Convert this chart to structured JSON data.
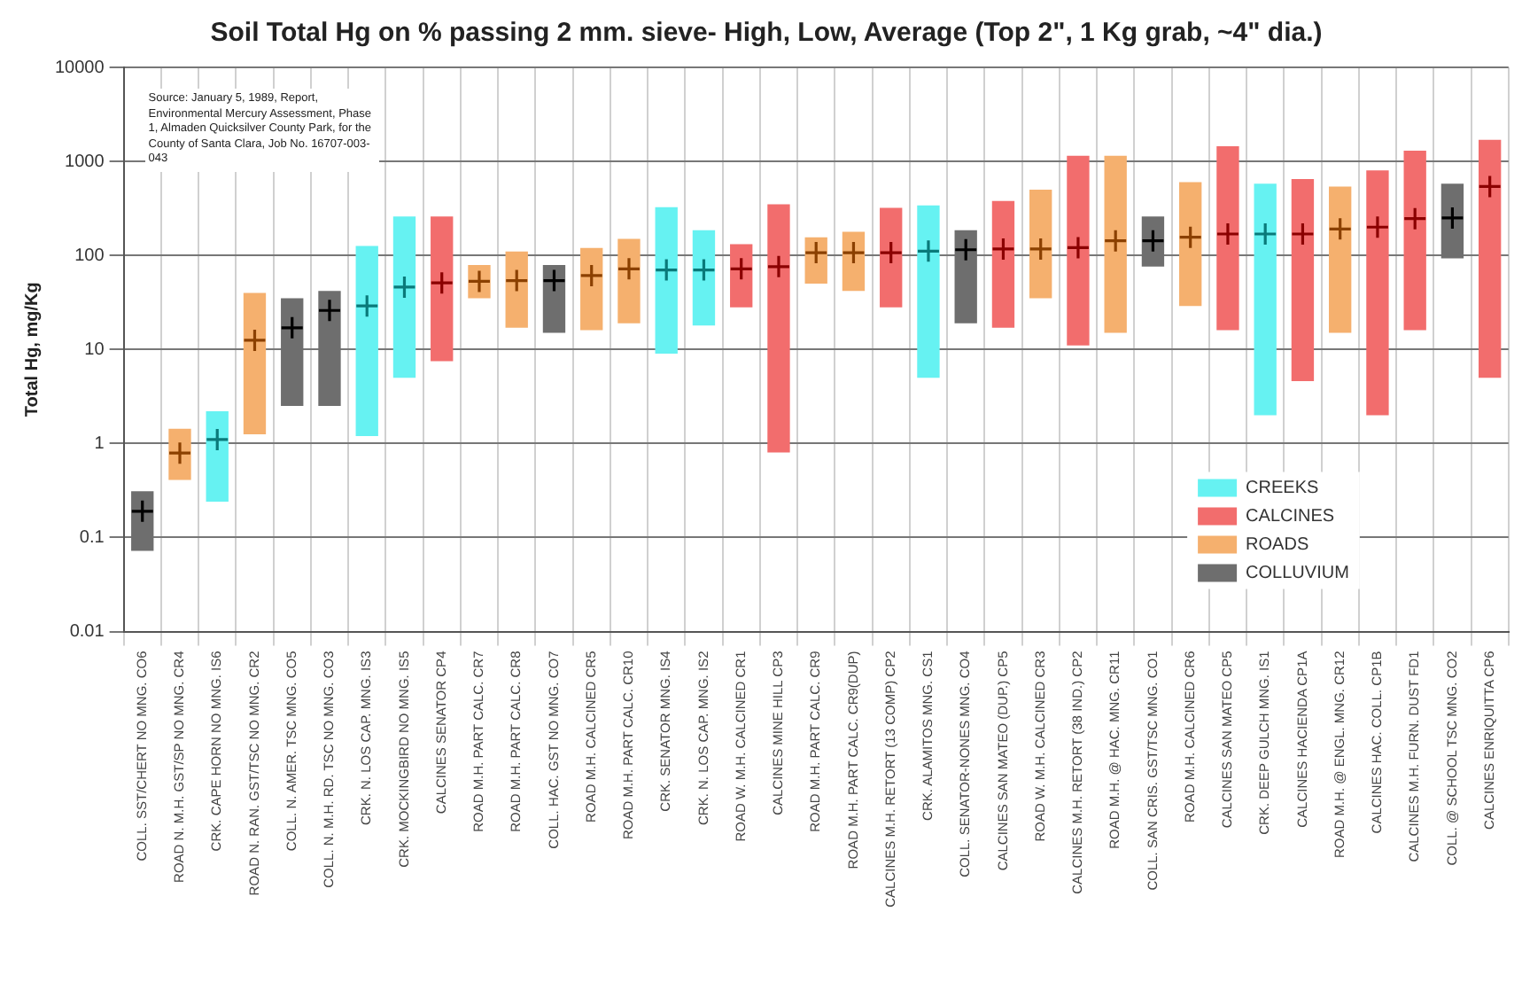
{
  "chart_data": {
    "type": "bar",
    "title": "Soil Total Hg on % passing 2 mm. sieve- High, Low, Average (Top 2\", 1 Kg grab, ~4\" dia.)",
    "ylabel": "Total Hg, mg/Kg",
    "categories": [
      "COLL. SST/CHERT NO MNG. CO6",
      "ROAD N. M.H. GST/SP NO MNG. CR4",
      "CRK. CAPE HORN NO MNG. IS6",
      "ROAD N. RAN. GST/TSC NO MNG. CR2",
      "COLL. N. AMER. TSC MNG. CO5",
      "COLL. N. M.H. RD. TSC NO MNG. CO3",
      "CRK. N. LOS CAP. MNG. IS3",
      "CRK. MOCKINGBIRD NO MNG. IS5",
      "CALCINES SENATOR CP4",
      "ROAD M.H. PART CALC. CR7",
      "ROAD M.H. PART CALC. CR8",
      "COLL. HAC. GST NO MNG. CO7",
      "ROAD M.H. CALCINED CR5",
      "ROAD M.H. PART CALC. CR10",
      "CRK. SENATOR MNG. IS4",
      "CRK. N. LOS CAP. MNG. IS2",
      "ROAD W. M.H. CALCINED CR1",
      "CALCINES MINE HILL CP3",
      "ROAD M.H. PART CALC. CR9",
      "ROAD M.H. PART CALC. CR9(DUP)",
      "CALCINES M.H. RETORT (13 COMP) CP2",
      "CRK. ALAMITOS MNG. CS1",
      "COLL. SENATOR-NONES MNG. CO4",
      "CALCINES SAN MATEO (DUP.) CP5",
      "ROAD W. M.H. CALCINED CR3",
      "CALCINES M.H. RETORT (38 IND.) CP2",
      "ROAD M.H. @ HAC. MNG. CR11",
      "COLL. SAN CRIS. GST/TSC MNG. CO1",
      "ROAD M.H. CALCINED CR6",
      "CALCINES SAN MATEO CP5",
      "CRK. DEEP GULCH MNG. IS1",
      "CALCINES HACIENDA CP1A",
      "ROAD M.H. @ ENGL. MNG. CR12",
      "CALCINES HAC. COLL. CP1B",
      "CALCINES M.H. FURN. DUST FD1",
      "COLL. @ SCHOOL TSC MNG. CO2",
      "CALCINES ENRIQUITTA CP6"
    ],
    "log": "y",
    "ylim": [
      0.01,
      10000
    ],
    "yticks": [
      0.01,
      0.1,
      1,
      10,
      100,
      1000,
      10000
    ],
    "grid": true,
    "legend": "bottom right",
    "annotations": [
      "Source: January 5, 1989, Report, Environmental Mercury Assessment, Phase 1, Almaden Quicksilver County Park, for the County of Santa Clara, Job No. 16707-003-043"
    ],
    "series": [
      {
        "name": "CREEKS",
        "color": "#66f2f2",
        "values": [
          null,
          null,
          1.96,
          null,
          null,
          null,
          124.8,
          255,
          null,
          null,
          null,
          null,
          null,
          null,
          316,
          167,
          null,
          null,
          null,
          null,
          null,
          335,
          null,
          null,
          null,
          null,
          null,
          null,
          null,
          null,
          578,
          null,
          null,
          null,
          null,
          null,
          null
        ],
        "base": [
          null,
          null,
          0.24,
          null,
          null,
          null,
          1.2,
          5,
          null,
          null,
          null,
          null,
          null,
          null,
          9,
          18,
          null,
          null,
          null,
          null,
          null,
          5,
          null,
          null,
          null,
          null,
          null,
          null,
          null,
          null,
          2,
          null,
          null,
          null,
          null,
          null,
          null
        ]
      },
      {
        "name": "CALCINES",
        "color": "#f26d6d",
        "values": [
          null,
          null,
          null,
          null,
          null,
          null,
          null,
          null,
          252.5,
          null,
          null,
          null,
          null,
          null,
          null,
          null,
          104,
          349.2,
          null,
          null,
          292,
          null,
          null,
          363,
          null,
          1139,
          null,
          null,
          null,
          1434,
          null,
          645.4,
          null,
          798,
          1284,
          null,
          1695
        ],
        "base": [
          null,
          null,
          null,
          null,
          null,
          null,
          null,
          null,
          7.5,
          null,
          null,
          null,
          null,
          null,
          null,
          null,
          28,
          0.8,
          null,
          null,
          28,
          null,
          null,
          17,
          null,
          11,
          null,
          null,
          null,
          16,
          null,
          4.6,
          null,
          2,
          16,
          null,
          5
        ]
      },
      {
        "name": "ROADS",
        "color": "#f5b06e",
        "values": [
          null,
          1.02,
          null,
          38.75,
          null,
          null,
          null,
          null,
          null,
          44,
          93,
          null,
          104,
          131,
          null,
          null,
          null,
          null,
          106,
          136,
          null,
          null,
          null,
          null,
          465,
          null,
          1135,
          null,
          571,
          null,
          null,
          null,
          525,
          null,
          null,
          null,
          null
        ],
        "base": [
          null,
          0.41,
          null,
          1.25,
          null,
          null,
          null,
          null,
          null,
          35,
          17,
          null,
          16,
          19,
          null,
          null,
          null,
          null,
          50,
          42,
          null,
          null,
          null,
          null,
          35,
          null,
          15,
          null,
          29,
          null,
          null,
          null,
          15,
          null,
          null,
          null,
          null
        ]
      },
      {
        "name": "COLLUVIUM",
        "color": "#6e6e6e",
        "values": [
          0.238,
          null,
          null,
          null,
          32.5,
          39.5,
          null,
          null,
          null,
          null,
          null,
          64,
          null,
          null,
          null,
          null,
          null,
          null,
          null,
          null,
          null,
          null,
          166,
          null,
          null,
          null,
          null,
          184,
          null,
          null,
          null,
          null,
          null,
          null,
          null,
          487,
          null
        ],
        "base": [
          0.072,
          null,
          null,
          null,
          2.5,
          2.5,
          null,
          null,
          null,
          null,
          null,
          15,
          null,
          null,
          null,
          null,
          null,
          null,
          null,
          null,
          null,
          null,
          19,
          null,
          null,
          null,
          null,
          76,
          null,
          null,
          null,
          null,
          null,
          null,
          null,
          93,
          null
        ]
      },
      {
        "type": "scatter",
        "marker": "cross",
        "x": [
          "COLL. SST/CHERT NO MNG. CO6",
          "ROAD N. M.H. GST/SP NO MNG. CR4",
          "CRK. CAPE HORN NO MNG. IS6",
          "ROAD N. RAN. GST/TSC NO MNG. CR2",
          "COLL. N. AMER. TSC MNG. CO5",
          "COLL. N. M.H. RD. TSC NO MNG. CO3",
          "CRK. N. LOS CAP. MNG. IS3",
          "CRK. MOCKINGBIRD NO MNG. IS5",
          "CALCINES SENATOR CP4",
          "ROAD M.H. PART CALC. CR7",
          "ROAD M.H. PART CALC. CR8",
          "COLL. HAC. GST NO MNG. CO7",
          "ROAD M.H. CALCINED CR5",
          "ROAD M.H. PART CALC. CR10",
          "CRK. SENATOR MNG. IS4",
          "CRK. N. LOS CAP. MNG. IS2",
          "ROAD W. M.H. CALCINED CR1",
          "CALCINES MINE HILL CP3",
          "ROAD M.H. PART CALC. CR9",
          "ROAD M.H. PART CALC. CR9(DUP)",
          "CALCINES M.H. RETORT (13 COMP) CP2",
          "CRK. ALAMITOS MNG. CS1",
          "COLL. SENATOR-NONES MNG. CO4",
          "CALCINES SAN MATEO (DUP.) CP5",
          "ROAD W. M.H. CALCINED CR3",
          "CALCINES M.H. RETORT (38 IND.) CP2",
          "ROAD M.H. @ HAC. MNG. CR11",
          "COLL. SAN CRIS. GST/TSC MNG. CO1",
          "ROAD M.H. CALCINED CR6",
          "CALCINES SAN MATEO CP5",
          "CRK. DEEP GULCH MNG. IS1",
          "CALCINES HACIENDA CP1A",
          "ROAD M.H. @ ENGL. MNG. CR12",
          "CALCINES HAC. COLL. CP1B",
          "CALCINES M.H. FURN. DUST FD1",
          "COLL. @ SCHOOL TSC MNG. CO2",
          "CALCINES ENRIQUITTA CP6"
        ],
        "values": [
          0.19,
          0.79,
          1.1,
          12.5,
          17,
          26,
          29,
          46,
          51,
          53,
          54,
          54,
          61,
          72,
          70,
          70,
          72,
          76,
          107,
          107,
          107,
          111,
          115,
          117,
          117,
          121,
          143,
          143,
          156,
          169,
          169,
          169,
          191,
          200,
          246,
          250,
          540
        ],
        "colors": [
          "#000000",
          "#8b4000",
          "#0a7a7a",
          "#8b4000",
          "#000000",
          "#000000",
          "#0a7a7a",
          "#0a7a7a",
          "#8b0000",
          "#8b4000",
          "#8b4000",
          "#000000",
          "#8b4000",
          "#8b4000",
          "#0a7a7a",
          "#0a7a7a",
          "#8b0000",
          "#8b0000",
          "#8b4000",
          "#8b4000",
          "#8b0000",
          "#0a7a7a",
          "#000000",
          "#8b0000",
          "#8b4000",
          "#8b0000",
          "#8b4000",
          "#000000",
          "#8b4000",
          "#8b0000",
          "#0a7a7a",
          "#8b0000",
          "#8b4000",
          "#8b0000",
          "#8b0000",
          "#000000",
          "#8b0000"
        ]
      }
    ]
  }
}
